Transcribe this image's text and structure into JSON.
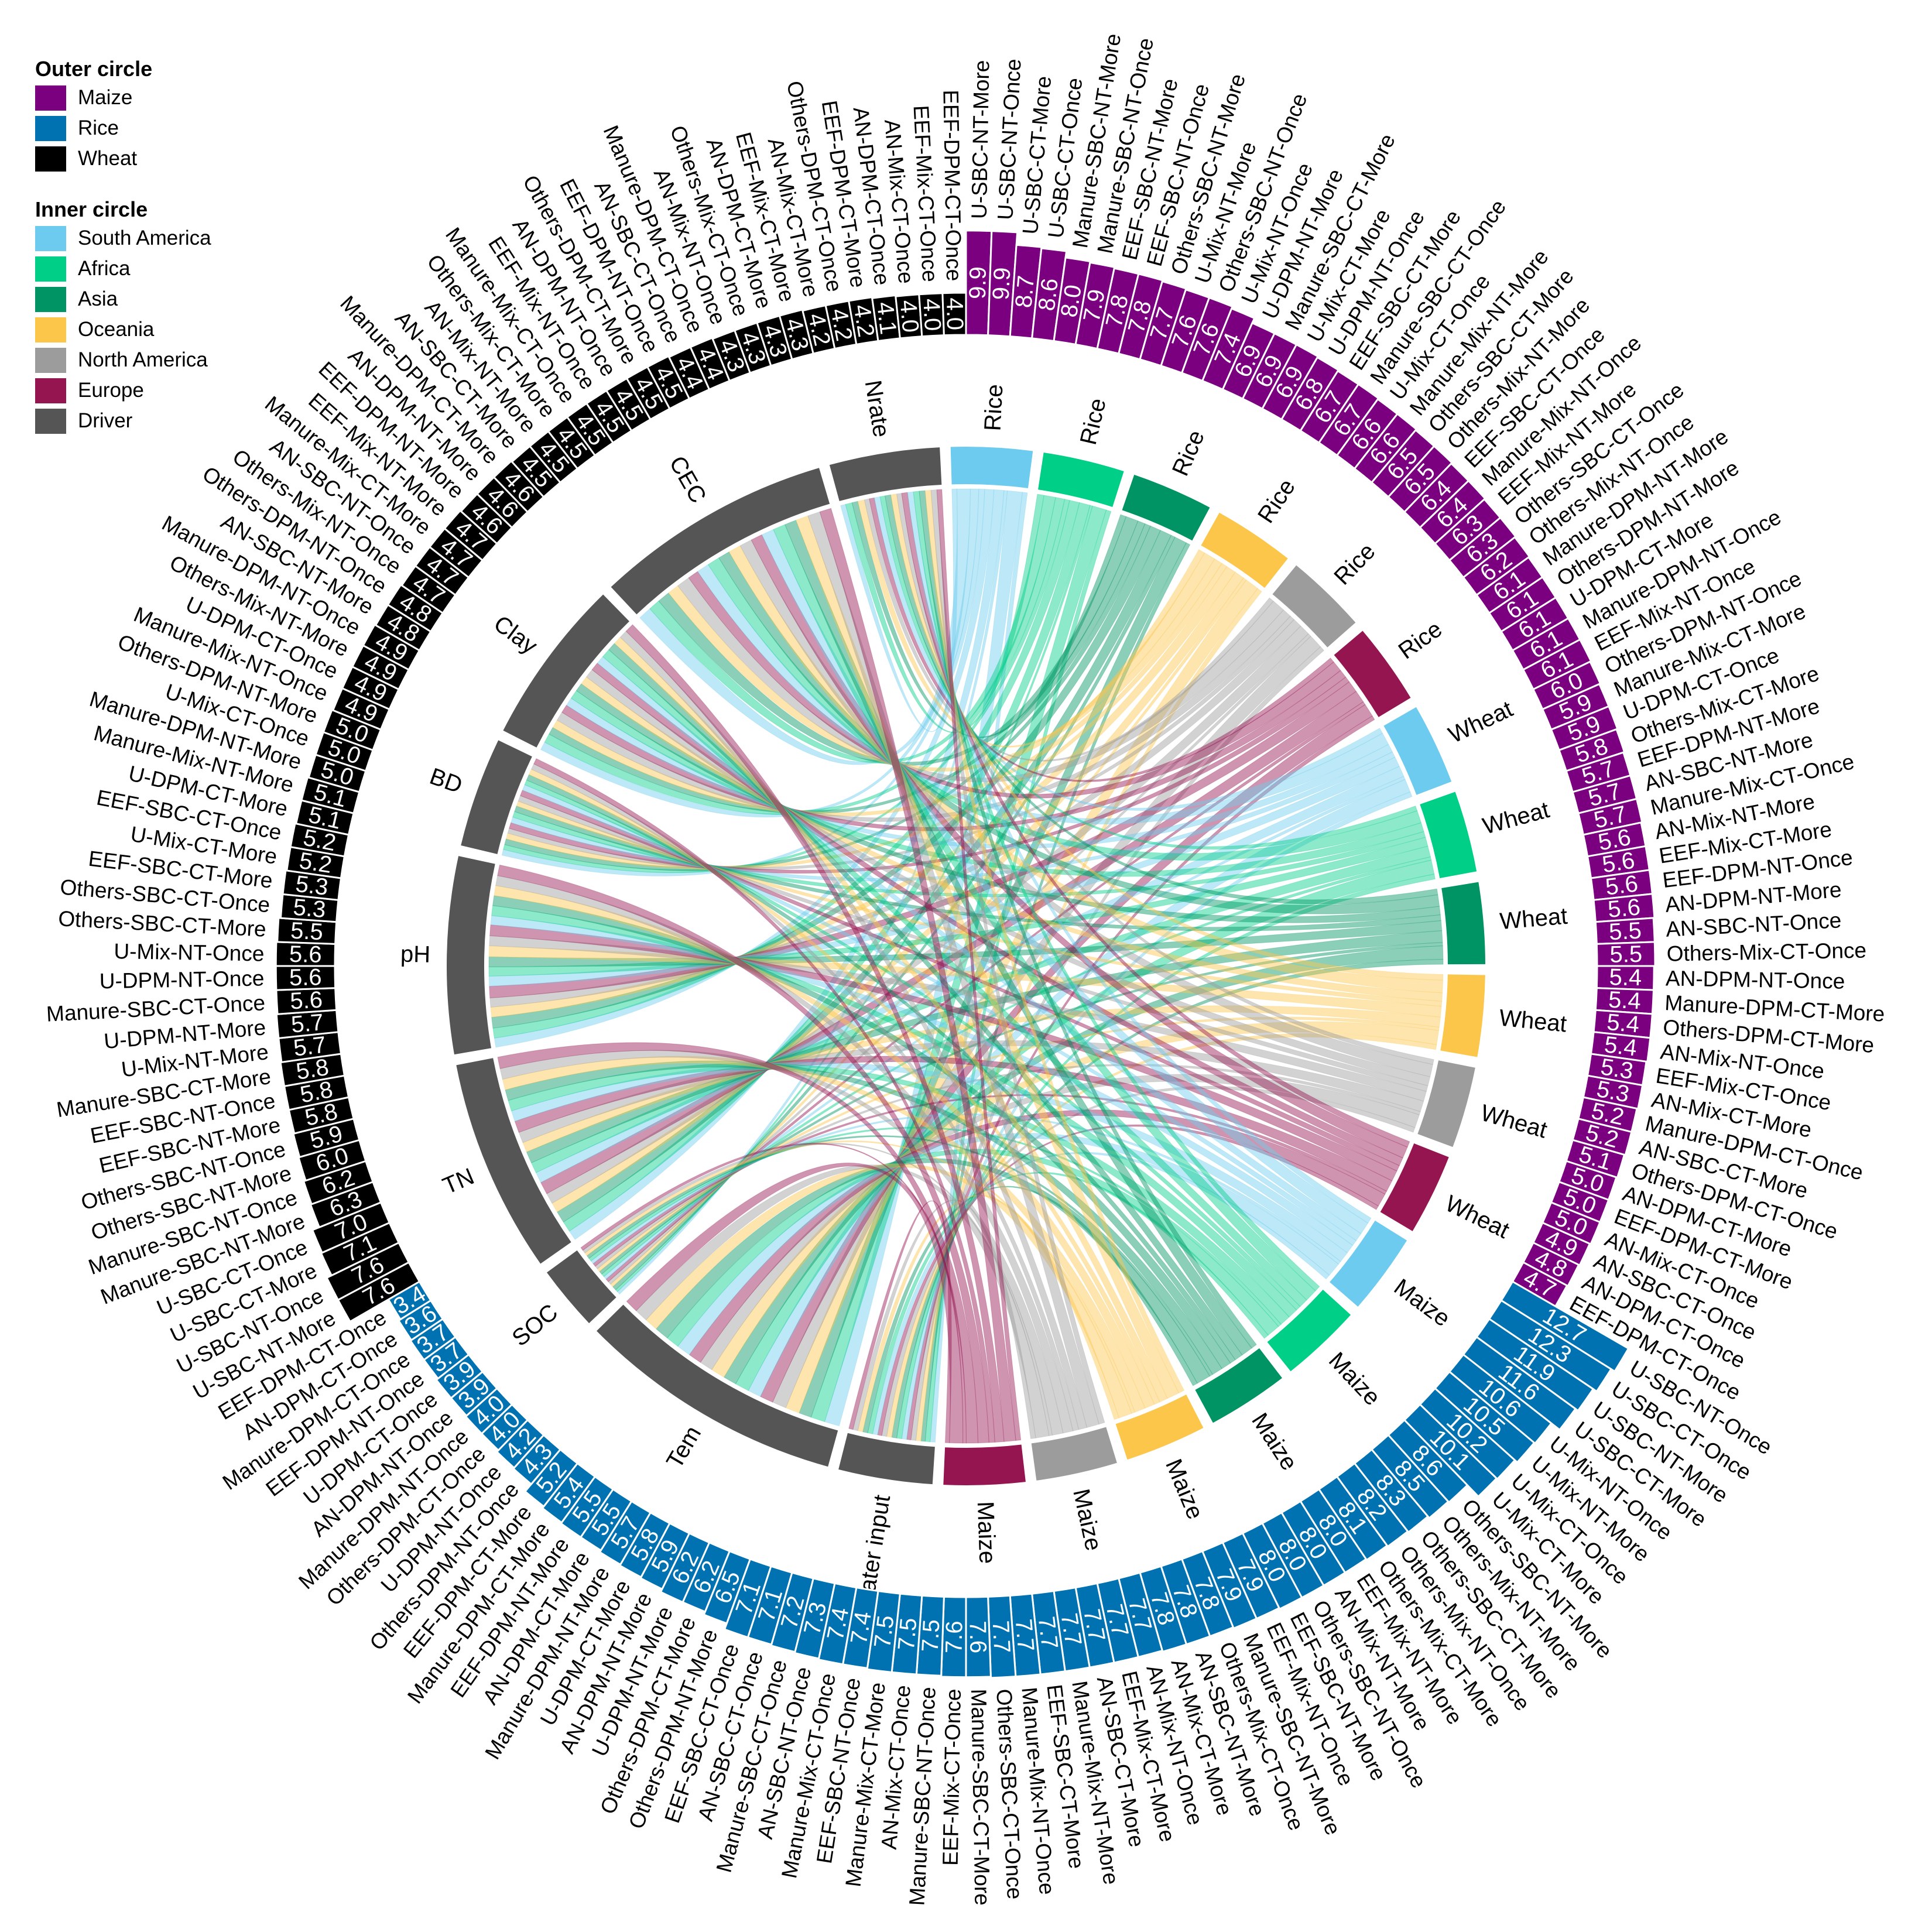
{
  "legend": {
    "outer_title": "Outer circle",
    "outer": [
      {
        "label": "Maize",
        "color": "#7B0080"
      },
      {
        "label": "Rice",
        "color": "#0072B2"
      },
      {
        "label": "Wheat",
        "color": "#000000"
      }
    ],
    "inner_title": "Inner circle",
    "inner": [
      {
        "label": "South America",
        "color": "#6CCBEE"
      },
      {
        "label": "Africa",
        "color": "#00CF88"
      },
      {
        "label": "Asia",
        "color": "#009464"
      },
      {
        "label": "Oceania",
        "color": "#FCC64B"
      },
      {
        "label": "North America",
        "color": "#9C9C9C"
      },
      {
        "label": "Europe",
        "color": "#951550"
      },
      {
        "label": "Driver",
        "color": "#555555"
      }
    ]
  },
  "chart_data": {
    "type": "chord",
    "title": "",
    "outer_ring": [
      {
        "crop": "Maize",
        "color": "#7B0080",
        "labels": [
          "U-SBC-NT-More",
          "U-SBC-NT-Once",
          "U-SBC-CT-More",
          "U-SBC-CT-Once",
          "Manure-SBC-NT-More",
          "Manure-SBC-NT-Once",
          "EEF-SBC-NT-More",
          "EEF-SBC-NT-Once",
          "Others-SBC-NT-More",
          "U-Mix-NT-More",
          "Others-SBC-NT-Once",
          "U-Mix-NT-Once",
          "U-DPM-NT-More",
          "Manure-SBC-CT-More",
          "U-Mix-CT-More",
          "U-DPM-NT-Once",
          "EEF-SBC-CT-More",
          "Manure-SBC-CT-Once",
          "U-Mix-CT-Once",
          "Manure-Mix-NT-More",
          "Others-SBC-CT-More",
          "Others-Mix-NT-More",
          "EEF-SBC-CT-Once",
          "Manure-Mix-NT-Once",
          "EEF-Mix-NT-More",
          "Others-SBC-CT-Once",
          "Others-Mix-NT-Once",
          "Manure-DPM-NT-More",
          "Others-DPM-NT-More",
          "U-DPM-CT-More",
          "Manure-DPM-NT-Once",
          "EEF-Mix-NT-Once",
          "Others-DPM-NT-Once",
          "Manure-Mix-CT-More",
          "U-DPM-CT-Once",
          "Others-Mix-CT-More",
          "EEF-DPM-NT-More",
          "AN-SBC-NT-More",
          "Manure-Mix-CT-Once",
          "AN-Mix-NT-More",
          "EEF-Mix-CT-More",
          "EEF-DPM-NT-Once",
          "AN-DPM-NT-More",
          "AN-SBC-NT-Once",
          "Others-Mix-CT-Once",
          "AN-DPM-NT-Once",
          "Manure-DPM-CT-More",
          "Others-DPM-CT-More",
          "AN-Mix-NT-Once",
          "EEF-Mix-CT-Once",
          "AN-Mix-CT-More",
          "Manure-DPM-CT-Once",
          "AN-SBC-CT-More",
          "Others-DPM-CT-Once",
          "AN-DPM-CT-More",
          "EEF-DPM-CT-More",
          "AN-Mix-CT-Once",
          "AN-SBC-CT-Once",
          "AN-DPM-CT-Once",
          "EEF-DPM-CT-Once"
        ],
        "values": [
          9.9,
          9.9,
          8.7,
          8.6,
          8.0,
          7.9,
          7.8,
          7.8,
          7.7,
          7.6,
          7.6,
          7.4,
          6.9,
          6.9,
          6.9,
          6.8,
          6.7,
          6.7,
          6.6,
          6.6,
          6.5,
          6.5,
          6.4,
          6.4,
          6.3,
          6.3,
          6.2,
          6.1,
          6.1,
          6.1,
          6.1,
          6.1,
          6.0,
          5.9,
          5.9,
          5.8,
          5.7,
          5.7,
          5.7,
          5.6,
          5.6,
          5.6,
          5.6,
          5.5,
          5.5,
          5.4,
          5.4,
          5.4,
          5.4,
          5.3,
          5.3,
          5.2,
          5.2,
          5.1,
          5.0,
          5.0,
          5.0,
          4.9,
          4.8,
          4.7
        ]
      },
      {
        "crop": "Rice",
        "color": "#0072B2",
        "labels": [
          "U-SBC-NT-Once",
          "U-SBC-CT-Once",
          "U-SBC-NT-More",
          "U-SBC-CT-More",
          "U-Mix-NT-Once",
          "U-Mix-NT-More",
          "U-Mix-CT-Once",
          "U-Mix-CT-More",
          "Others-SBC-NT-More",
          "Others-Mix-NT-More",
          "Others-SBC-CT-More",
          "Others-Mix-NT-Once",
          "Others-Mix-CT-More",
          "EEF-Mix-NT-More",
          "AN-Mix-NT-More",
          "Others-SBC-NT-Once",
          "EEF-SBC-NT-More",
          "EEF-Mix-NT-Once",
          "Manure-SBC-NT-More",
          "Others-Mix-CT-Once",
          "AN-SBC-NT-More",
          "AN-Mix-CT-More",
          "AN-Mix-NT-Once",
          "EEF-Mix-CT-More",
          "AN-SBC-CT-More",
          "Manure-Mix-NT-More",
          "EEF-SBC-CT-More",
          "Manure-Mix-NT-Once",
          "Others-SBC-CT-Once",
          "Manure-SBC-CT-More",
          "EEF-Mix-CT-Once",
          "Manure-SBC-NT-Once",
          "AN-Mix-CT-Once",
          "Manure-Mix-CT-More",
          "EEF-SBC-NT-Once",
          "Manure-Mix-CT-Once",
          "AN-SBC-NT-Once",
          "Manure-SBC-CT-Once",
          "AN-SBC-CT-Once",
          "EEF-SBC-CT-Once",
          "Others-DPM-NT-More",
          "Others-DPM-CT-More",
          "U-DPM-NT-More",
          "AN-DPM-NT-More",
          "U-DPM-CT-More",
          "Manure-DPM-NT-More",
          "AN-DPM-CT-More",
          "EEF-DPM-NT-More",
          "Manure-DPM-CT-More",
          "EEF-DPM-CT-More",
          "Others-DPM-NT-Once",
          "U-DPM-NT-Once",
          "Others-DPM-CT-Once",
          "Manure-DPM-NT-Once",
          "AN-DPM-NT-Once",
          "U-DPM-CT-Once",
          "EEF-DPM-NT-Once",
          "Manure-DPM-CT-Once",
          "AN-DPM-CT-Once",
          "EEF-DPM-CT-Once"
        ],
        "values": [
          12.7,
          12.3,
          11.9,
          11.6,
          10.6,
          10.5,
          10.2,
          10.1,
          8.6,
          8.5,
          8.3,
          8.2,
          8.1,
          8.0,
          8.0,
          8.0,
          8.0,
          7.9,
          7.9,
          7.8,
          7.8,
          7.8,
          7.7,
          7.7,
          7.7,
          7.7,
          7.7,
          7.7,
          7.7,
          7.6,
          7.6,
          7.5,
          7.5,
          7.5,
          7.4,
          7.4,
          7.3,
          7.2,
          7.1,
          7.1,
          6.5,
          6.2,
          6.2,
          5.9,
          5.8,
          5.7,
          5.5,
          5.5,
          5.4,
          5.2,
          4.3,
          4.2,
          4.0,
          4.0,
          3.9,
          3.9,
          3.7,
          3.7,
          3.6,
          3.4
        ]
      },
      {
        "crop": "Wheat",
        "color": "#000000",
        "labels": [
          "U-SBC-NT-More",
          "U-SBC-NT-Once",
          "U-SBC-CT-More",
          "U-SBC-CT-Once",
          "Manure-SBC-NT-More",
          "Manure-SBC-NT-Once",
          "Others-SBC-NT-More",
          "Others-SBC-NT-Once",
          "EEF-SBC-NT-More",
          "EEF-SBC-NT-Once",
          "Manure-SBC-CT-More",
          "U-Mix-NT-More",
          "U-DPM-NT-More",
          "Manure-SBC-CT-Once",
          "U-DPM-NT-Once",
          "U-Mix-NT-Once",
          "Others-SBC-CT-More",
          "Others-SBC-CT-Once",
          "EEF-SBC-CT-More",
          "U-Mix-CT-More",
          "EEF-SBC-CT-Once",
          "U-DPM-CT-More",
          "Manure-Mix-NT-More",
          "Manure-DPM-NT-More",
          "U-Mix-CT-Once",
          "Others-DPM-NT-More",
          "Manure-Mix-NT-Once",
          "U-DPM-CT-Once",
          "Others-Mix-NT-More",
          "Manure-DPM-NT-Once",
          "AN-SBC-NT-More",
          "Others-DPM-NT-Once",
          "Others-Mix-NT-Once",
          "AN-SBC-NT-Once",
          "Manure-Mix-CT-More",
          "EEF-Mix-NT-More",
          "EEF-DPM-NT-More",
          "AN-DPM-NT-More",
          "Manure-DPM-CT-More",
          "AN-SBC-CT-More",
          "AN-Mix-NT-More",
          "Others-Mix-CT-More",
          "Manure-Mix-CT-Once",
          "EEF-Mix-NT-Once",
          "AN-DPM-NT-Once",
          "Others-DPM-CT-More",
          "EEF-DPM-NT-Once",
          "AN-SBC-CT-Once",
          "Manure-DPM-CT-Once",
          "AN-Mix-NT-Once",
          "Others-Mix-CT-Once",
          "AN-DPM-CT-More",
          "EEF-Mix-CT-More",
          "AN-Mix-CT-More",
          "Others-DPM-CT-Once",
          "EEF-DPM-CT-More",
          "AN-DPM-CT-Once",
          "AN-Mix-CT-Once",
          "EEF-Mix-CT-Once",
          "EEF-DPM-CT-Once"
        ],
        "values": [
          7.6,
          7.6,
          7.1,
          7.0,
          6.3,
          6.2,
          6.0,
          5.9,
          5.8,
          5.8,
          5.8,
          5.7,
          5.7,
          5.6,
          5.6,
          5.6,
          5.5,
          5.3,
          5.3,
          5.2,
          5.2,
          5.1,
          5.1,
          5.0,
          5.0,
          5.0,
          4.9,
          4.9,
          4.9,
          4.9,
          4.8,
          4.8,
          4.7,
          4.7,
          4.7,
          4.7,
          4.6,
          4.6,
          4.6,
          4.5,
          4.5,
          4.5,
          4.5,
          4.5,
          4.5,
          4.5,
          4.5,
          4.4,
          4.4,
          4.3,
          4.3,
          4.3,
          4.3,
          4.2,
          4.2,
          4.2,
          4.1,
          4.0,
          4.0,
          4.0
        ]
      }
    ],
    "inner_ring": {
      "region_segments": [
        {
          "crop": "Rice",
          "region": "South America"
        },
        {
          "crop": "Rice",
          "region": "Africa"
        },
        {
          "crop": "Rice",
          "region": "Asia"
        },
        {
          "crop": "Rice",
          "region": "Oceania"
        },
        {
          "crop": "Rice",
          "region": "North America"
        },
        {
          "crop": "Rice",
          "region": "Europe"
        },
        {
          "crop": "Wheat",
          "region": "South America"
        },
        {
          "crop": "Wheat",
          "region": "Africa"
        },
        {
          "crop": "Wheat",
          "region": "Asia"
        },
        {
          "crop": "Wheat",
          "region": "Oceania"
        },
        {
          "crop": "Wheat",
          "region": "North America"
        },
        {
          "crop": "Wheat",
          "region": "Europe"
        },
        {
          "crop": "Maize",
          "region": "South America"
        },
        {
          "crop": "Maize",
          "region": "Africa"
        },
        {
          "crop": "Maize",
          "region": "Asia"
        },
        {
          "crop": "Maize",
          "region": "Oceania"
        },
        {
          "crop": "Maize",
          "region": "North America"
        },
        {
          "crop": "Maize",
          "region": "Europe"
        }
      ],
      "drivers": [
        "Nrate",
        "CEC",
        "Clay",
        "BD",
        "pH",
        "TN",
        "SOC",
        "Tem",
        "Water input"
      ],
      "driver_order_clockwise": [
        "Water input",
        "Tem",
        "SOC",
        "TN",
        "pH",
        "BD",
        "Clay",
        "CEC",
        "Nrate"
      ],
      "link_weights_approx": [
        [
          0.6,
          1.6,
          1.0,
          0.7,
          1.1,
          1.2,
          0.4,
          1.8,
          0.6
        ],
        [
          0.8,
          1.4,
          1.1,
          0.6,
          1.2,
          1.3,
          0.3,
          1.7,
          0.6
        ],
        [
          0.7,
          1.5,
          0.9,
          0.7,
          1.3,
          1.4,
          0.5,
          1.5,
          0.5
        ],
        [
          0.8,
          1.4,
          1.0,
          0.7,
          1.2,
          1.2,
          0.4,
          1.7,
          0.6
        ],
        [
          0.6,
          1.6,
          1.1,
          0.6,
          1.1,
          1.3,
          0.4,
          1.7,
          0.6
        ],
        [
          0.6,
          1.3,
          1.0,
          0.7,
          1.4,
          1.5,
          0.4,
          1.6,
          0.5
        ],
        [
          0.7,
          1.5,
          1.0,
          0.7,
          1.2,
          1.3,
          0.4,
          1.6,
          0.6
        ],
        [
          0.6,
          1.5,
          1.1,
          0.7,
          1.1,
          1.3,
          0.4,
          1.7,
          0.6
        ],
        [
          0.7,
          1.4,
          1.0,
          0.7,
          1.2,
          1.4,
          0.4,
          1.6,
          0.6
        ],
        [
          0.7,
          1.5,
          1.0,
          0.6,
          1.3,
          1.2,
          0.4,
          1.7,
          0.6
        ],
        [
          0.6,
          1.5,
          1.1,
          0.7,
          1.2,
          1.3,
          0.4,
          1.6,
          0.6
        ],
        [
          0.7,
          1.4,
          1.0,
          0.7,
          1.3,
          1.4,
          0.4,
          1.6,
          0.5
        ],
        [
          0.7,
          1.5,
          1.0,
          0.7,
          1.1,
          1.3,
          0.4,
          1.7,
          0.6
        ],
        [
          0.7,
          1.5,
          1.1,
          0.6,
          1.2,
          1.3,
          0.4,
          1.6,
          0.6
        ],
        [
          0.7,
          1.4,
          1.0,
          0.7,
          1.2,
          1.3,
          0.4,
          1.7,
          0.6
        ],
        [
          0.7,
          1.5,
          1.0,
          0.7,
          1.2,
          1.3,
          0.4,
          1.6,
          0.6
        ],
        [
          0.7,
          1.5,
          1.0,
          0.7,
          1.2,
          1.3,
          0.4,
          1.6,
          0.6
        ],
        [
          0.6,
          1.4,
          1.1,
          0.7,
          1.3,
          1.4,
          0.4,
          1.6,
          0.5
        ]
      ],
      "driver_color": "#555555"
    }
  }
}
